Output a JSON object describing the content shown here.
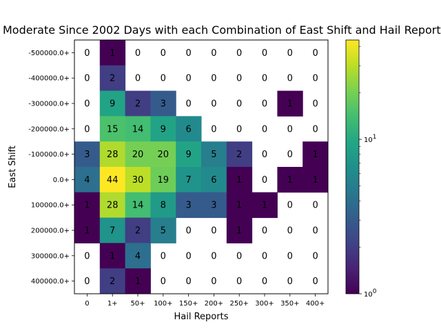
{
  "chart_data": {
    "type": "heatmap",
    "title": "Moderate Since 2002 Days with each Combination of East Shift and Hail Reports",
    "xlabel": "Hail Reports",
    "ylabel": "East Shift",
    "x_categories": [
      "0",
      "1+",
      "50+",
      "100+",
      "150+",
      "200+",
      "250+",
      "300+",
      "350+",
      "400+"
    ],
    "y_categories": [
      "-500000.0+",
      "-400000.0+",
      "-300000.0+",
      "-200000.0+",
      "-100000.0+",
      "0.0+",
      "100000.0+",
      "200000.0+",
      "300000.0+",
      "400000.0+"
    ],
    "values": [
      [
        0,
        1,
        0,
        0,
        0,
        0,
        0,
        0,
        0,
        0
      ],
      [
        0,
        2,
        0,
        0,
        0,
        0,
        0,
        0,
        0,
        0
      ],
      [
        0,
        9,
        2,
        3,
        0,
        0,
        0,
        0,
        1,
        0
      ],
      [
        0,
        15,
        14,
        9,
        6,
        0,
        0,
        0,
        0,
        0
      ],
      [
        3,
        28,
        20,
        20,
        9,
        5,
        2,
        0,
        0,
        1
      ],
      [
        4,
        44,
        30,
        19,
        7,
        6,
        1,
        0,
        1,
        1
      ],
      [
        1,
        28,
        14,
        8,
        3,
        3,
        1,
        1,
        0,
        0
      ],
      [
        1,
        7,
        2,
        5,
        0,
        0,
        1,
        0,
        0,
        0
      ],
      [
        0,
        1,
        4,
        0,
        0,
        0,
        0,
        0,
        0,
        0
      ],
      [
        0,
        2,
        1,
        0,
        0,
        0,
        0,
        0,
        0,
        0
      ]
    ],
    "colorbar": {
      "scale": "log",
      "min": 1,
      "max": 44,
      "tick_values": [
        1,
        10
      ],
      "tick_labels": [
        "10^0",
        "10^1"
      ],
      "colormap": "viridis"
    },
    "zero_color": "#ffffff"
  }
}
